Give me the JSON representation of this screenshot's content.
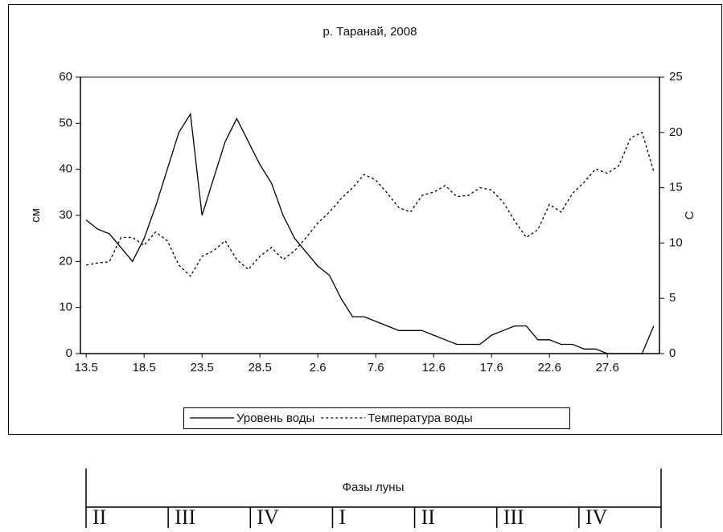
{
  "chart_data": {
    "type": "line",
    "title": "р. Таранай, 2008",
    "ylabel": "см",
    "y2label": "С",
    "categories": [
      "13.5",
      null,
      null,
      null,
      null,
      "18.5",
      null,
      null,
      null,
      null,
      "23.5",
      null,
      null,
      null,
      null,
      "28.5",
      null,
      null,
      null,
      null,
      "2.6",
      null,
      null,
      null,
      null,
      "7.6",
      null,
      null,
      null,
      null,
      "12.6",
      null,
      null,
      null,
      null,
      "17.6",
      null,
      null,
      null,
      null,
      "22.6",
      null,
      null,
      null,
      null,
      "27.6",
      null,
      null,
      null,
      null
    ],
    "series": [
      {
        "name": "Уровень воды",
        "color": "#000000",
        "style": "solid",
        "values": [
          29,
          27,
          26,
          23,
          20,
          25,
          32,
          40,
          48,
          52,
          30,
          38,
          46,
          51,
          46,
          41,
          37,
          30,
          25,
          22,
          19,
          17,
          12,
          8,
          8,
          7,
          6,
          5,
          5,
          5,
          4,
          3,
          2,
          2,
          2,
          4,
          5,
          6,
          6,
          3,
          3,
          2,
          2,
          1,
          1,
          0,
          0,
          0,
          0,
          6
        ]
      },
      {
        "name": "Температура воды",
        "color": "#000000",
        "style": "dashed",
        "axis": "y2",
        "values": [
          8,
          8.2,
          8.3,
          10.5,
          10.5,
          9.8,
          11,
          10.2,
          8,
          7,
          8.8,
          9.3,
          10.2,
          8.5,
          7.6,
          8.8,
          9.6,
          8.5,
          9.3,
          10.5,
          11.8,
          12.8,
          14,
          15,
          16.2,
          15.7,
          14.5,
          13.2,
          12.8,
          14.3,
          14.6,
          15.2,
          14.2,
          14.3,
          15,
          14.8,
          13.7,
          12,
          10.5,
          11.2,
          13.5,
          12.8,
          14.5,
          15.5,
          16.7,
          16.3,
          17,
          19.5,
          20,
          16.5
        ]
      }
    ],
    "ylim": [
      0,
      60
    ],
    "yticks": [
      0,
      10,
      20,
      30,
      40,
      50,
      60
    ],
    "y2lim": [
      0,
      25
    ],
    "y2ticks": [
      0,
      5,
      10,
      15,
      20,
      25
    ],
    "legend": "bottom"
  },
  "moon_table": {
    "title": "Фазы луны",
    "phases": [
      "II",
      "III",
      "IV",
      "I",
      "II",
      "III",
      "IV"
    ]
  }
}
